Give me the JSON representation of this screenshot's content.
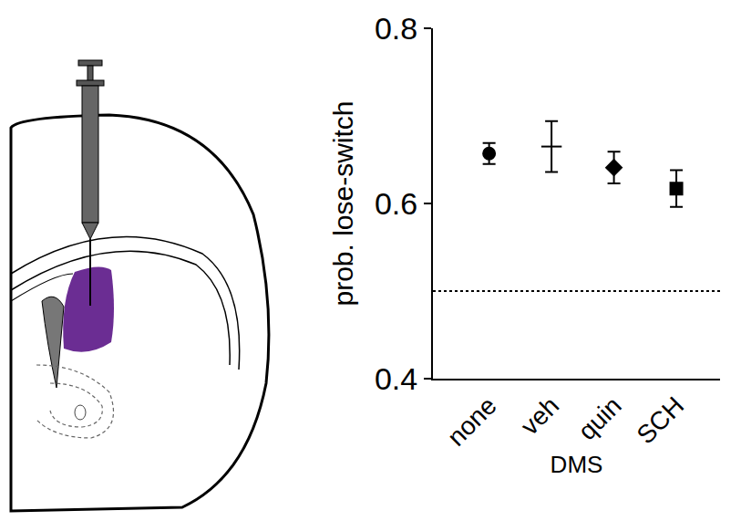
{
  "chart_data": {
    "type": "scatter",
    "categories": [
      "none",
      "veh",
      "quin",
      "SCH"
    ],
    "x_label": "DMS",
    "y_label": "prob. lose-switch",
    "ylim": [
      0.4,
      0.8
    ],
    "yticks": [
      0.4,
      0.6,
      0.8
    ],
    "grid": false,
    "color": "#000000",
    "series": [
      {
        "marker": "circle",
        "values": [
          0.657,
          null,
          null,
          null
        ],
        "errors": [
          0.012,
          null,
          null,
          null
        ]
      },
      {
        "marker": "dash",
        "values": [
          null,
          0.665,
          null,
          null
        ],
        "errors": [
          null,
          0.029,
          null,
          null
        ]
      },
      {
        "marker": "diamond",
        "values": [
          null,
          null,
          0.641,
          null
        ],
        "errors": [
          null,
          null,
          0.018,
          null
        ]
      },
      {
        "marker": "square",
        "values": [
          null,
          null,
          null,
          0.617
        ],
        "errors": [
          null,
          null,
          null,
          0.021
        ]
      }
    ],
    "hline": {
      "value": 0.5,
      "line_style": "dot"
    }
  }
}
